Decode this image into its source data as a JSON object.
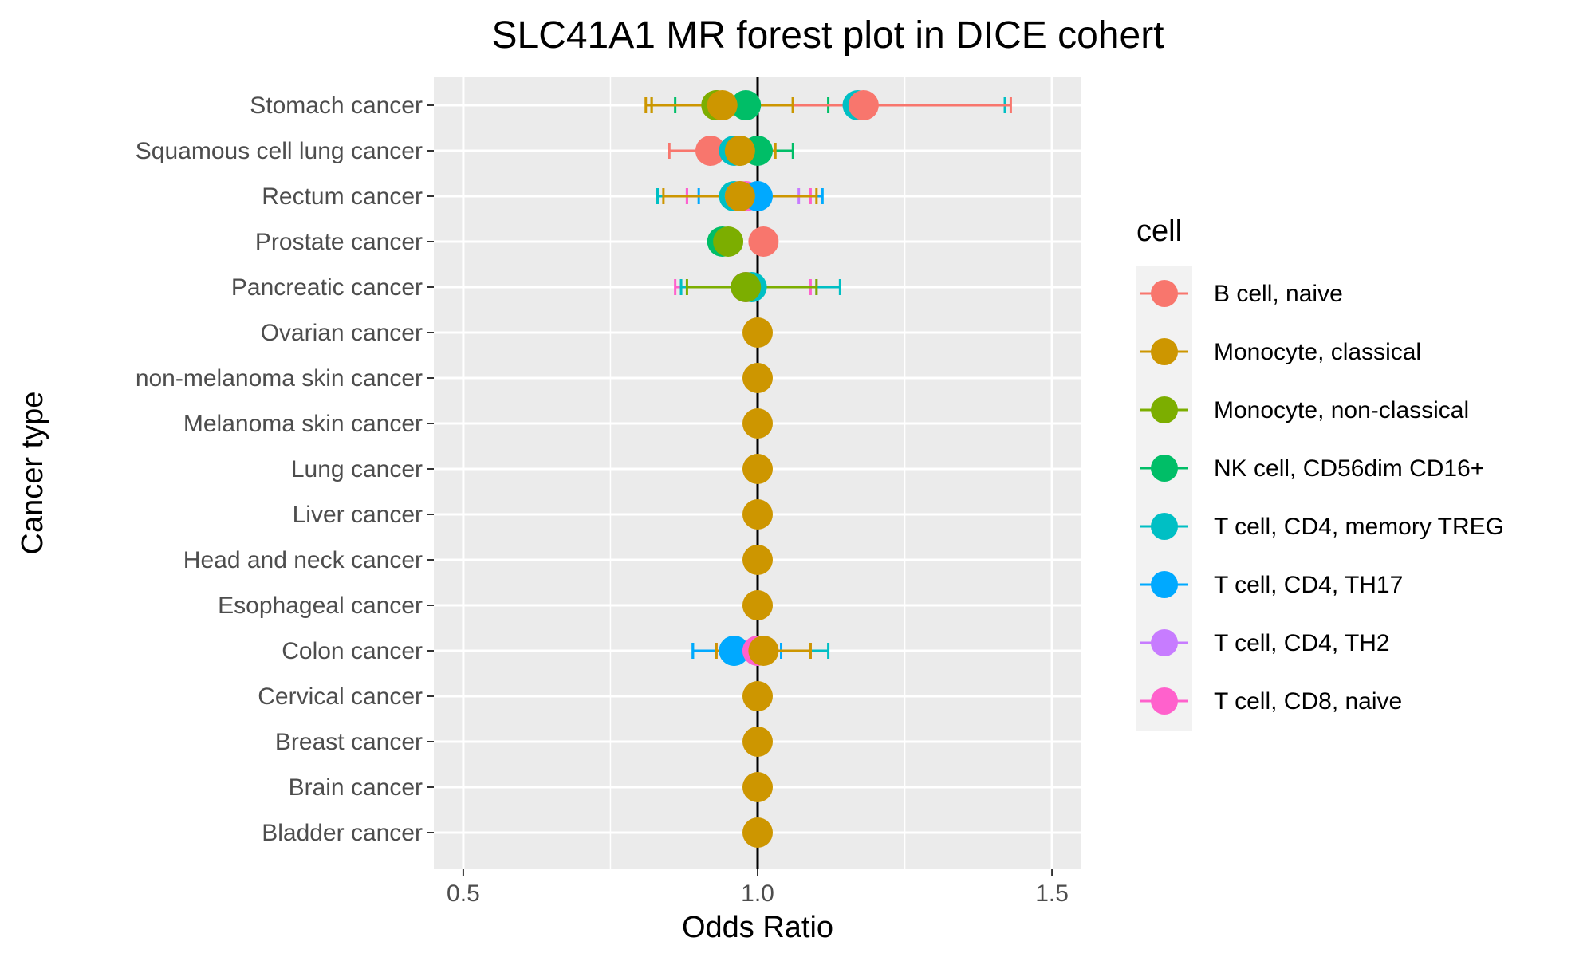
{
  "chart_data": {
    "type": "scatter",
    "subtype": "forest-plot",
    "title": "SLC41A1 MR forest plot in DICE cohert",
    "xlabel": "Odds Ratio",
    "ylabel": "Cancer type",
    "xlim": [
      0.45,
      1.55
    ],
    "x_ticks": [
      "0.5",
      "1.0",
      "1.5"
    ],
    "x_tick_values": [
      0.5,
      1.0,
      1.5
    ],
    "reference_line": 1.0,
    "grid": true,
    "legend": {
      "title": "cell",
      "placement": "right",
      "entries": [
        {
          "name": "B cell, naive",
          "color": "#F8766D"
        },
        {
          "name": "Monocyte, classical",
          "color": "#CD9600"
        },
        {
          "name": "Monocyte, non-classical",
          "color": "#7CAE00"
        },
        {
          "name": "NK cell, CD56dim CD16+",
          "color": "#00BE67"
        },
        {
          "name": "T cell, CD4, memory TREG",
          "color": "#00BFC4"
        },
        {
          "name": "T cell, CD4, TH17",
          "color": "#00A9FF"
        },
        {
          "name": "T cell, CD4, TH2",
          "color": "#C77CFF"
        },
        {
          "name": "T cell, CD8, naive",
          "color": "#FF61CC"
        }
      ]
    },
    "categories": [
      "Stomach cancer",
      "Squamous cell lung cancer",
      "Rectum cancer",
      "Prostate cancer",
      "Pancreatic cancer",
      "Ovarian cancer",
      "non-melanoma skin cancer",
      "Melanoma skin cancer",
      "Lung cancer",
      "Liver cancer",
      "Head and neck cancer",
      "Esophageal cancer",
      "Colon cancer",
      "Cervical cancer",
      "Breast cancer",
      "Brain cancer",
      "Bladder cancer"
    ],
    "points": [
      {
        "cancer": "Stomach cancer",
        "cell": 1,
        "or": 0.93,
        "lo": 0.81,
        "hi": 1.06
      },
      {
        "cancer": "Stomach cancer",
        "cell": 2,
        "or": 0.93,
        "lo": 0.82,
        "hi": 1.06
      },
      {
        "cancer": "Stomach cancer",
        "cell": 3,
        "or": 0.98,
        "lo": 0.86,
        "hi": 1.12
      },
      {
        "cancer": "Stomach cancer",
        "cell": 4,
        "or": 1.17,
        "lo": 0.97,
        "hi": 1.42
      },
      {
        "cancer": "Stomach cancer",
        "cell": 0,
        "or": 1.18,
        "lo": 0.97,
        "hi": 1.43
      },
      {
        "cancer": "Stomach cancer",
        "cell": 1,
        "or": 0.94,
        "lo": 0.82,
        "hi": 1.06
      },
      {
        "cancer": "Squamous cell lung cancer",
        "cell": 0,
        "or": 0.92,
        "lo": 0.85,
        "hi": 0.99
      },
      {
        "cancer": "Squamous cell lung cancer",
        "cell": 4,
        "or": 0.96,
        "lo": 0.9,
        "hi": 1.02
      },
      {
        "cancer": "Squamous cell lung cancer",
        "cell": 2,
        "or": 0.97,
        "lo": 0.91,
        "hi": 1.03
      },
      {
        "cancer": "Squamous cell lung cancer",
        "cell": 3,
        "or": 1.0,
        "lo": 0.94,
        "hi": 1.06
      },
      {
        "cancer": "Squamous cell lung cancer",
        "cell": 1,
        "or": 0.97,
        "lo": 0.92,
        "hi": 1.03
      },
      {
        "cancer": "Rectum cancer",
        "cell": 4,
        "or": 0.96,
        "lo": 0.83,
        "hi": 1.11
      },
      {
        "cancer": "Rectum cancer",
        "cell": 6,
        "or": 0.97,
        "lo": 0.88,
        "hi": 1.07
      },
      {
        "cancer": "Rectum cancer",
        "cell": 7,
        "or": 0.98,
        "lo": 0.88,
        "hi": 1.09
      },
      {
        "cancer": "Rectum cancer",
        "cell": 5,
        "or": 1.0,
        "lo": 0.9,
        "hi": 1.11
      },
      {
        "cancer": "Rectum cancer",
        "cell": 1,
        "or": 0.97,
        "lo": 0.84,
        "hi": 1.1
      },
      {
        "cancer": "Prostate cancer",
        "cell": 3,
        "or": 0.94,
        "lo": 0.92,
        "hi": 0.97
      },
      {
        "cancer": "Prostate cancer",
        "cell": 2,
        "or": 0.95,
        "lo": 0.93,
        "hi": 0.97
      },
      {
        "cancer": "Prostate cancer",
        "cell": 0,
        "or": 1.01,
        "lo": 0.99,
        "hi": 1.03
      },
      {
        "cancer": "Pancreatic cancer",
        "cell": 6,
        "or": 0.98,
        "lo": 0.87,
        "hi": 1.1
      },
      {
        "cancer": "Pancreatic cancer",
        "cell": 7,
        "or": 0.98,
        "lo": 0.86,
        "hi": 1.09
      },
      {
        "cancer": "Pancreatic cancer",
        "cell": 4,
        "or": 0.99,
        "lo": 0.87,
        "hi": 1.14
      },
      {
        "cancer": "Pancreatic cancer",
        "cell": 2,
        "or": 0.98,
        "lo": 0.88,
        "hi": 1.1
      },
      {
        "cancer": "Ovarian cancer",
        "cell": 1,
        "or": 1.0,
        "lo": 1.0,
        "hi": 1.0
      },
      {
        "cancer": "non-melanoma skin cancer",
        "cell": 1,
        "or": 1.0,
        "lo": 1.0,
        "hi": 1.0
      },
      {
        "cancer": "Melanoma skin cancer",
        "cell": 1,
        "or": 1.0,
        "lo": 1.0,
        "hi": 1.0
      },
      {
        "cancer": "Lung cancer",
        "cell": 1,
        "or": 1.0,
        "lo": 1.0,
        "hi": 1.0
      },
      {
        "cancer": "Liver cancer",
        "cell": 1,
        "or": 1.0,
        "lo": 1.0,
        "hi": 1.0
      },
      {
        "cancer": "Head and neck cancer",
        "cell": 1,
        "or": 1.0,
        "lo": 1.0,
        "hi": 1.0
      },
      {
        "cancer": "Esophageal cancer",
        "cell": 1,
        "or": 1.0,
        "lo": 1.0,
        "hi": 1.0
      },
      {
        "cancer": "Colon cancer",
        "cell": 4,
        "or": 0.96,
        "lo": 0.89,
        "hi": 1.12
      },
      {
        "cancer": "Colon cancer",
        "cell": 5,
        "or": 0.96,
        "lo": 0.89,
        "hi": 1.04
      },
      {
        "cancer": "Colon cancer",
        "cell": 6,
        "or": 1.0,
        "lo": 0.93,
        "hi": 1.09
      },
      {
        "cancer": "Colon cancer",
        "cell": 7,
        "or": 1.0,
        "lo": 0.93,
        "hi": 1.09
      },
      {
        "cancer": "Colon cancer",
        "cell": 1,
        "or": 1.01,
        "lo": 0.93,
        "hi": 1.09
      },
      {
        "cancer": "Cervical cancer",
        "cell": 1,
        "or": 1.0,
        "lo": 1.0,
        "hi": 1.0
      },
      {
        "cancer": "Breast cancer",
        "cell": 1,
        "or": 1.0,
        "lo": 1.0,
        "hi": 1.0
      },
      {
        "cancer": "Brain cancer",
        "cell": 1,
        "or": 1.0,
        "lo": 1.0,
        "hi": 1.0
      },
      {
        "cancer": "Bladder cancer",
        "cell": 1,
        "or": 1.0,
        "lo": 1.0,
        "hi": 1.0
      }
    ]
  }
}
